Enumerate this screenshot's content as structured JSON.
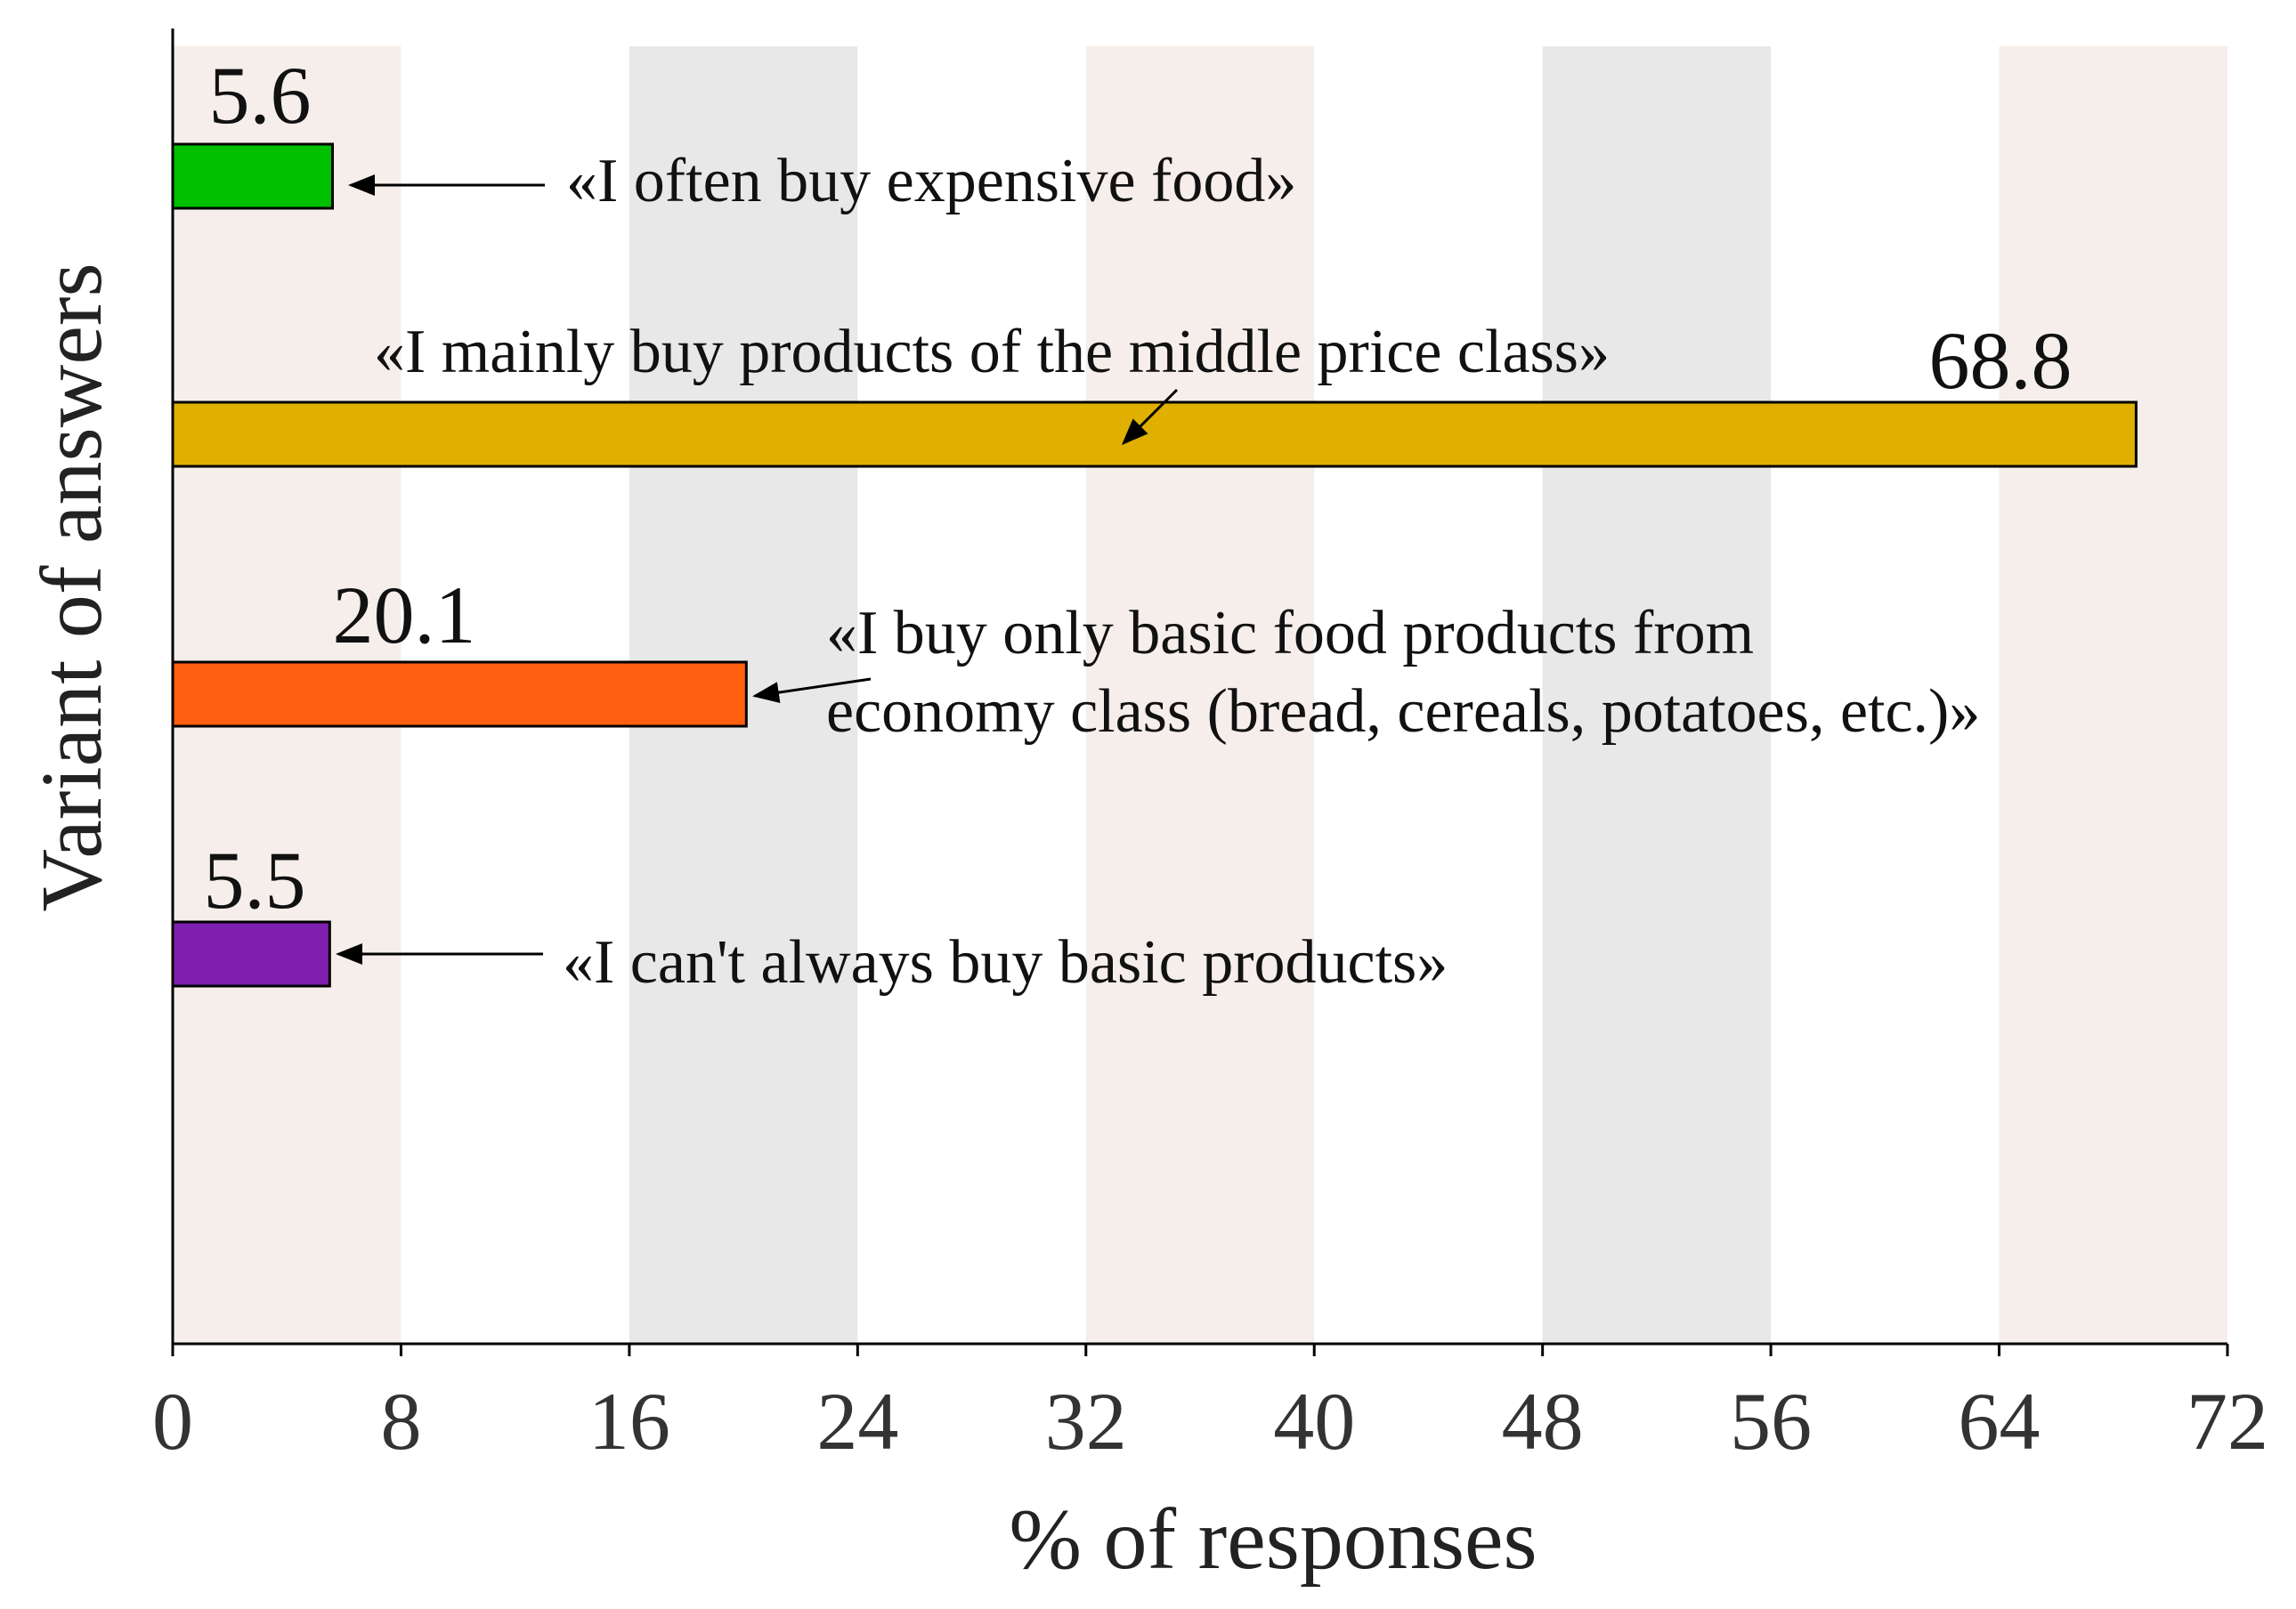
{
  "chart_data": {
    "type": "bar",
    "orientation": "horizontal",
    "title": "",
    "xlabel": "% of responses",
    "ylabel": "Variant of answers",
    "xlim": [
      0,
      72
    ],
    "xticks": [
      0,
      8,
      16,
      24,
      32,
      40,
      48,
      56,
      64,
      72
    ],
    "xtick_labels": [
      "0",
      "8",
      "16",
      "24",
      "32",
      "40",
      "48",
      "56",
      "64",
      "72"
    ],
    "grid": false,
    "background_bands": {
      "width_units": 8,
      "starts": [
        0,
        16,
        32,
        48,
        64
      ],
      "colors": [
        "#f6eeea",
        "#e8e8e8",
        "#f6eeea",
        "#e8e8e8",
        "#f6eeea"
      ]
    },
    "bars": [
      {
        "category": "«I often buy expensive food»",
        "value": 5.6,
        "value_label": "5.6",
        "color": "#00c000",
        "annotation_lines": [
          "«I often buy expensive food»"
        ]
      },
      {
        "category": "«I mainly buy products of the middle price class»",
        "value": 68.8,
        "value_label": "68.8",
        "color": "#e0b000",
        "annotation_lines": [
          "«I mainly buy products of the middle price class»"
        ]
      },
      {
        "category": "«I buy only basic food products from economy class (bread, cereals, potatoes, etc.)»",
        "value": 20.1,
        "value_label": "20.1",
        "color": "#ff5f0f",
        "annotation_lines": [
          "«I buy only basic food products from",
          "economy class (bread, cereals, potatoes, etc.)»"
        ]
      },
      {
        "category": "«I can't always buy basic products»",
        "value": 5.5,
        "value_label": "5.5",
        "color": "#7f1fb0",
        "annotation_lines": [
          "«I can't always buy basic products»"
        ]
      }
    ]
  }
}
